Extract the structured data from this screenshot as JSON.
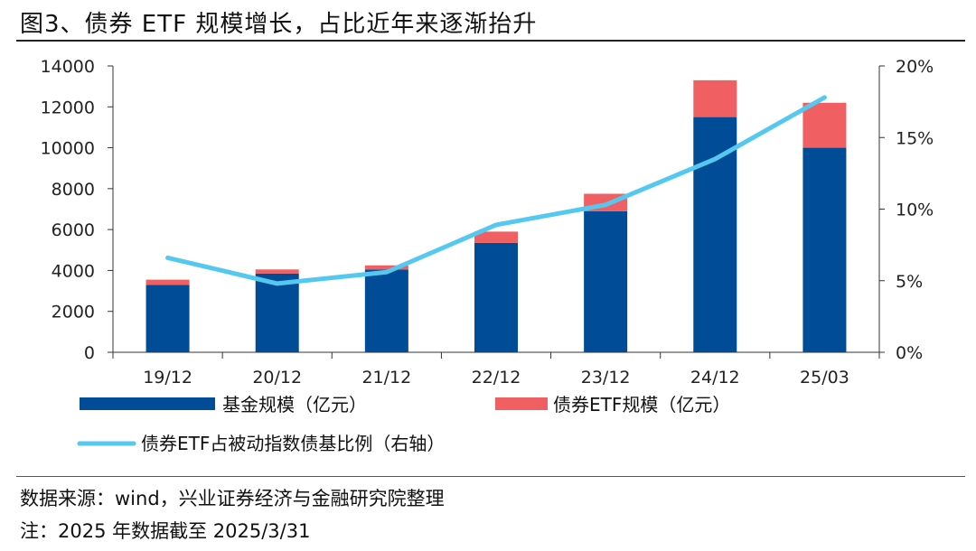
{
  "title": "图3、债券 ETF 规模增长，占比近年来逐渐抬升",
  "chart_data": {
    "type": "bar",
    "stacked": true,
    "categories": [
      "19/12",
      "20/12",
      "21/12",
      "22/12",
      "23/12",
      "24/12",
      "25/03"
    ],
    "series": [
      {
        "name": "基金规模（亿元）",
        "type": "bar",
        "axis": "left",
        "color": "#004c97",
        "values": [
          3300,
          3850,
          4050,
          5350,
          6900,
          11500,
          10000
        ]
      },
      {
        "name": "债券ETF规模（亿元）",
        "type": "bar",
        "axis": "left",
        "color": "#f06063",
        "values": [
          250,
          200,
          200,
          550,
          850,
          1800,
          2200
        ]
      },
      {
        "name": "债券ETF占被动指数债基比例（右轴）",
        "type": "line",
        "axis": "right",
        "color": "#55c8f0",
        "values": [
          6.6,
          4.8,
          5.6,
          8.9,
          10.3,
          13.5,
          17.8
        ]
      }
    ],
    "y_left": {
      "min": 0,
      "max": 14000,
      "ticks": [
        "0",
        "2000",
        "4000",
        "6000",
        "8000",
        "10000",
        "12000",
        "14000"
      ]
    },
    "y_right": {
      "min": 0,
      "max": 20,
      "ticks": [
        "0%",
        "5%",
        "10%",
        "15%",
        "20%"
      ]
    },
    "grid": false,
    "legend_position": "bottom"
  },
  "footer": {
    "source": "数据来源：wind，兴业证券经济与金融研究院整理",
    "note": "注：2025 年数据截至 2025/3/31"
  }
}
